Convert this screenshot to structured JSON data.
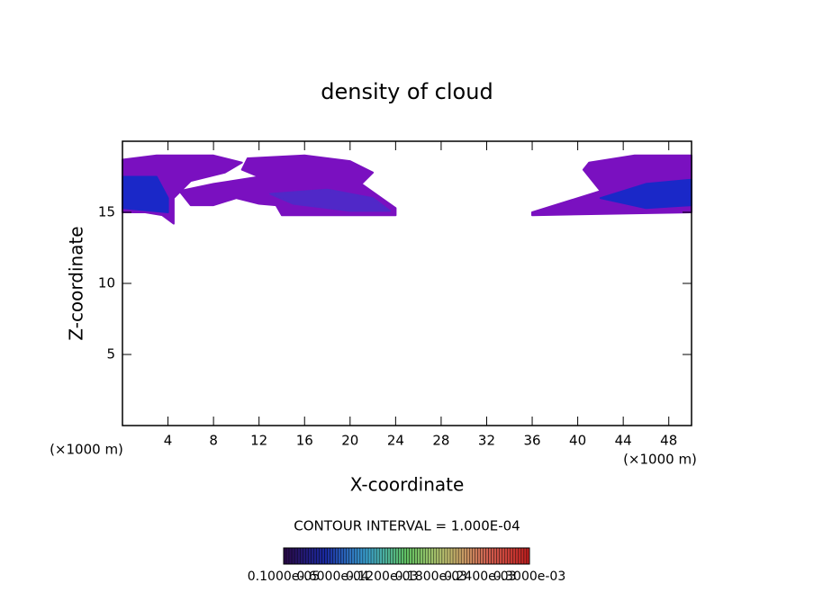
{
  "chart_data": {
    "type": "contour",
    "title": "density of cloud",
    "xlabel": "X-coordinate",
    "ylabel": "Z-coordinate",
    "xunit": "(×1000 m)",
    "xunit_right": "(×1000 m)",
    "xlim": [
      0,
      50
    ],
    "ylim": [
      0,
      20
    ],
    "xticks": [
      4,
      8,
      12,
      16,
      20,
      24,
      28,
      32,
      36,
      40,
      44,
      48
    ],
    "yticks": [
      5,
      10,
      15
    ],
    "contour_interval": "CONTOUR INTERVAL = 1.000E-04",
    "colorbar": {
      "colors": [
        "#2a0a4a",
        "#1a2aa0",
        "#3aa0d0",
        "#60c060",
        "#c0c070",
        "#d06050",
        "#c02020"
      ],
      "labels": [
        "0.1000e-05",
        "0.6000e-04",
        "0.1200e-03",
        "0.1800e-03",
        "0.2400e-03",
        "0.3000e-03"
      ]
    },
    "regions": [
      {
        "color": "#7a10c0",
        "x": [
          0,
          3,
          8,
          10.5,
          9,
          6,
          4.5,
          4.5,
          3.5,
          2,
          0
        ],
        "y": [
          18.7,
          19,
          19,
          18.5,
          17.8,
          17.2,
          16,
          14.2,
          14.8,
          15,
          15
        ]
      },
      {
        "color": "#7a10c0",
        "x": [
          11,
          16,
          20,
          22,
          21,
          24,
          24,
          20,
          14,
          13.5,
          12,
          10,
          8,
          6,
          5,
          8,
          12,
          10.5
        ],
        "y": [
          18.8,
          19,
          18.6,
          17.8,
          17,
          15.3,
          14.8,
          14.8,
          14.8,
          15.5,
          15.6,
          16,
          15.5,
          15.5,
          16.5,
          17,
          17.5,
          18
        ]
      },
      {
        "color": "#7a10c0",
        "x": [
          36,
          42,
          40.5,
          41,
          45,
          50,
          50,
          36
        ],
        "y": [
          15,
          16.5,
          18,
          18.5,
          19,
          19,
          15,
          14.8
        ]
      },
      {
        "color": "#5028c8",
        "x": [
          13,
          18,
          22,
          23.5,
          20,
          15
        ],
        "y": [
          16.3,
          16.6,
          16,
          15.1,
          15.1,
          15.6
        ]
      },
      {
        "color": "#1a28c8",
        "x": [
          0,
          3,
          4,
          4,
          0
        ],
        "y": [
          17.5,
          17.5,
          16,
          15,
          15.3
        ]
      },
      {
        "color": "#1a28c8",
        "x": [
          42,
          46,
          50,
          50,
          46
        ],
        "y": [
          16,
          17,
          17.3,
          15.5,
          15.3
        ]
      }
    ]
  }
}
